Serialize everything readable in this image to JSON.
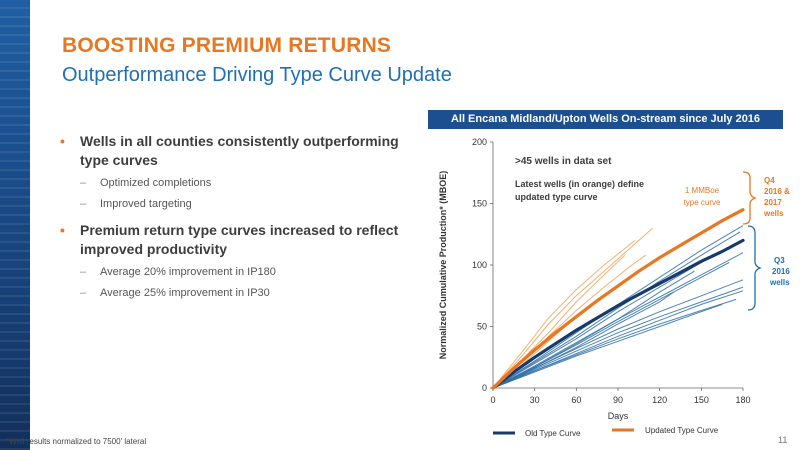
{
  "title": "BOOSTING PREMIUM RETURNS",
  "subtitle": "Outperformance Driving Type Curve Update",
  "bullets": [
    {
      "text": "Wells in all counties consistently outperforming type curves",
      "subs": [
        "Optimized completions",
        "Improved targeting"
      ]
    },
    {
      "text": "Premium return type curves increased to reflect improved productivity",
      "subs": [
        "Average 20% improvement in IP180",
        "Average 25% improvement in IP30"
      ]
    }
  ],
  "footnote": "*Well results normalized to 7500' lateral",
  "page_number": "11",
  "colors": {
    "orange": "#e87722",
    "navy": "#1b4f8f",
    "title_blue": "#1f6fb2",
    "old_curve": "#173a6b",
    "blue_wells": "#2f6ea8",
    "orange_wells": "#f0a25a"
  },
  "chart_data": {
    "type": "line",
    "title": "All Encana Midland/Upton Wells On-stream since July 2016",
    "xlabel": "Days",
    "ylabel": "Normalized Cumulative Production* (MBOE)",
    "xlim": [
      0,
      180
    ],
    "ylim": [
      0,
      200
    ],
    "xticks": [
      0,
      30,
      60,
      90,
      120,
      150,
      180
    ],
    "yticks": [
      0,
      50,
      100,
      150,
      200
    ],
    "grid": false,
    "legend_position": "bottom",
    "legend": [
      "Old Type Curve",
      "Updated Type Curve"
    ],
    "annotations": {
      "dataset": ">45 wells in data set",
      "latest_1": "Latest wells (in orange) define",
      "latest_2": "updated type curve",
      "mmboe_1": "1 MMBoe",
      "mmboe_2": "type curve",
      "q4_1": "Q4",
      "q4_2": "2016 &",
      "q4_3": "2017",
      "q4_4": "wells",
      "q3_1": "Q3",
      "q3_2": "2016",
      "q3_3": "wells"
    },
    "series": [
      {
        "name": "Old Type Curve",
        "color": "#173a6b",
        "x": [
          0,
          15,
          30,
          45,
          60,
          75,
          90,
          105,
          120,
          135,
          150,
          165,
          180
        ],
        "y": [
          0,
          13,
          25,
          36,
          47,
          57,
          67,
          76,
          85,
          94,
          103,
          111,
          120
        ]
      },
      {
        "name": "Updated Type Curve",
        "color": "#e87722",
        "x": [
          0,
          15,
          30,
          45,
          60,
          75,
          90,
          105,
          120,
          135,
          150,
          165,
          180
        ],
        "y": [
          0,
          16,
          31,
          45,
          58,
          71,
          83,
          95,
          106,
          116,
          126,
          136,
          145
        ]
      }
    ],
    "wells": [
      {
        "color": "#f0a25a",
        "x": [
          0,
          20,
          40,
          60,
          80,
          100,
          102
        ],
        "y": [
          0,
          28,
          57,
          80,
          100,
          118,
          120
        ]
      },
      {
        "color": "#f0a25a",
        "x": [
          0,
          20,
          40,
          60,
          80,
          100,
          115
        ],
        "y": [
          0,
          25,
          52,
          75,
          95,
          115,
          130
        ]
      },
      {
        "color": "#f0a25a",
        "x": [
          0,
          20,
          40,
          60,
          80,
          95
        ],
        "y": [
          0,
          22,
          45,
          70,
          92,
          108
        ]
      },
      {
        "color": "#f0a25a",
        "x": [
          0,
          20,
          40,
          60,
          80,
          100,
          110
        ],
        "y": [
          0,
          20,
          42,
          63,
          82,
          100,
          108
        ]
      },
      {
        "color": "#f0a25a",
        "x": [
          0,
          20,
          40,
          60,
          80,
          100
        ],
        "y": [
          0,
          18,
          38,
          58,
          75,
          92
        ]
      },
      {
        "color": "#2f6ea8",
        "x": [
          0,
          30,
          60,
          90,
          120,
          150,
          180
        ],
        "y": [
          0,
          22,
          45,
          68,
          90,
          112,
          132
        ]
      },
      {
        "color": "#2f6ea8",
        "x": [
          0,
          30,
          60,
          90,
          120,
          150,
          178
        ],
        "y": [
          0,
          21,
          42,
          65,
          87,
          108,
          127
        ]
      },
      {
        "color": "#2f6ea8",
        "x": [
          0,
          30,
          60,
          90,
          120,
          150,
          175
        ],
        "y": [
          0,
          20,
          40,
          62,
          82,
          102,
          118
        ]
      },
      {
        "color": "#2f6ea8",
        "x": [
          0,
          30,
          60,
          90,
          120,
          150,
          180
        ],
        "y": [
          0,
          18,
          37,
          56,
          74,
          92,
          110
        ]
      },
      {
        "color": "#2f6ea8",
        "x": [
          0,
          30,
          60,
          90,
          120,
          150,
          170
        ],
        "y": [
          0,
          17,
          35,
          54,
          72,
          90,
          102
        ]
      },
      {
        "color": "#2f6ea8",
        "x": [
          0,
          30,
          60,
          90,
          120,
          150,
          180
        ],
        "y": [
          0,
          16,
          32,
          48,
          62,
          75,
          88
        ]
      },
      {
        "color": "#2f6ea8",
        "x": [
          0,
          30,
          60,
          90,
          120,
          150,
          180
        ],
        "y": [
          0,
          15,
          30,
          45,
          58,
          70,
          82
        ]
      },
      {
        "color": "#2f6ea8",
        "x": [
          0,
          30,
          60,
          90,
          120,
          150,
          180
        ],
        "y": [
          0,
          14,
          28,
          42,
          55,
          68,
          79
        ]
      },
      {
        "color": "#2f6ea8",
        "x": [
          0,
          30,
          60,
          90,
          120,
          150,
          175
        ],
        "y": [
          0,
          14,
          27,
          40,
          52,
          63,
          72
        ]
      },
      {
        "color": "#2f6ea8",
        "x": [
          0,
          30,
          60,
          90,
          120,
          150,
          165
        ],
        "y": [
          0,
          13,
          26,
          38,
          50,
          62,
          68
        ]
      },
      {
        "color": "#2f6ea8",
        "x": [
          0,
          30,
          60,
          90,
          120,
          130
        ],
        "y": [
          0,
          16,
          33,
          52,
          70,
          78
        ]
      },
      {
        "color": "#2f6ea8",
        "x": [
          0,
          30,
          60,
          90,
          120,
          145
        ],
        "y": [
          0,
          17,
          36,
          56,
          78,
          95
        ]
      }
    ]
  }
}
